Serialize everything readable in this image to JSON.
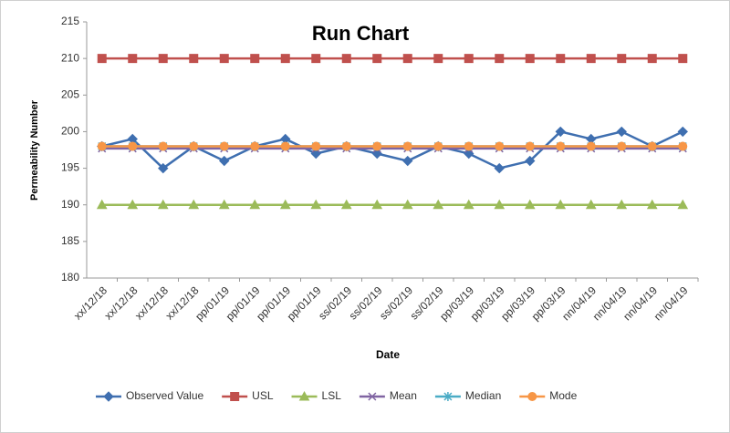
{
  "chart_data": {
    "type": "line",
    "title": "Run Chart",
    "x_label": "Date",
    "y_label": "Permeability Number",
    "categories": [
      "xx/12/18",
      "xx/12/18",
      "xx/12/18",
      "xx/12/18",
      "pp/01/19",
      "pp/01/19",
      "pp/01/19",
      "pp/01/19",
      "ss/02/19",
      "ss/02/19",
      "ss/02/19",
      "ss/02/19",
      "pp/03/19",
      "pp/03/19",
      "pp/03/19",
      "pp/03/19",
      "nn/04/19",
      "nn/04/19",
      "nn/04/19",
      "nn/04/19"
    ],
    "series": [
      {
        "name": "Observed Value",
        "color": "#3f6fb0",
        "marker": "diamond",
        "values": [
          198,
          199,
          195,
          198,
          196,
          198,
          199,
          197,
          198,
          197,
          196,
          198,
          197,
          195,
          196,
          200,
          199,
          200,
          198,
          200
        ]
      },
      {
        "name": "USL",
        "color": "#c0504d",
        "marker": "square",
        "values": [
          210,
          210,
          210,
          210,
          210,
          210,
          210,
          210,
          210,
          210,
          210,
          210,
          210,
          210,
          210,
          210,
          210,
          210,
          210,
          210
        ]
      },
      {
        "name": "LSL",
        "color": "#9bbb59",
        "marker": "triangle",
        "values": [
          190,
          190,
          190,
          190,
          190,
          190,
          190,
          190,
          190,
          190,
          190,
          190,
          190,
          190,
          190,
          190,
          190,
          190,
          190,
          190
        ]
      },
      {
        "name": "Mean",
        "color": "#8064a2",
        "marker": "x",
        "values": [
          197.7,
          197.7,
          197.7,
          197.7,
          197.7,
          197.7,
          197.7,
          197.7,
          197.7,
          197.7,
          197.7,
          197.7,
          197.7,
          197.7,
          197.7,
          197.7,
          197.7,
          197.7,
          197.7,
          197.7
        ]
      },
      {
        "name": "Median",
        "color": "#4bacc6",
        "marker": "star",
        "values": [
          198,
          198,
          198,
          198,
          198,
          198,
          198,
          198,
          198,
          198,
          198,
          198,
          198,
          198,
          198,
          198,
          198,
          198,
          198,
          198
        ]
      },
      {
        "name": "Mode",
        "color": "#f79646",
        "marker": "circle",
        "values": [
          198,
          198,
          198,
          198,
          198,
          198,
          198,
          198,
          198,
          198,
          198,
          198,
          198,
          198,
          198,
          198,
          198,
          198,
          198,
          198
        ]
      }
    ],
    "ylim": [
      180,
      215
    ],
    "yticks": [
      180,
      185,
      190,
      195,
      200,
      205,
      210,
      215
    ],
    "legend": "bottom"
  }
}
